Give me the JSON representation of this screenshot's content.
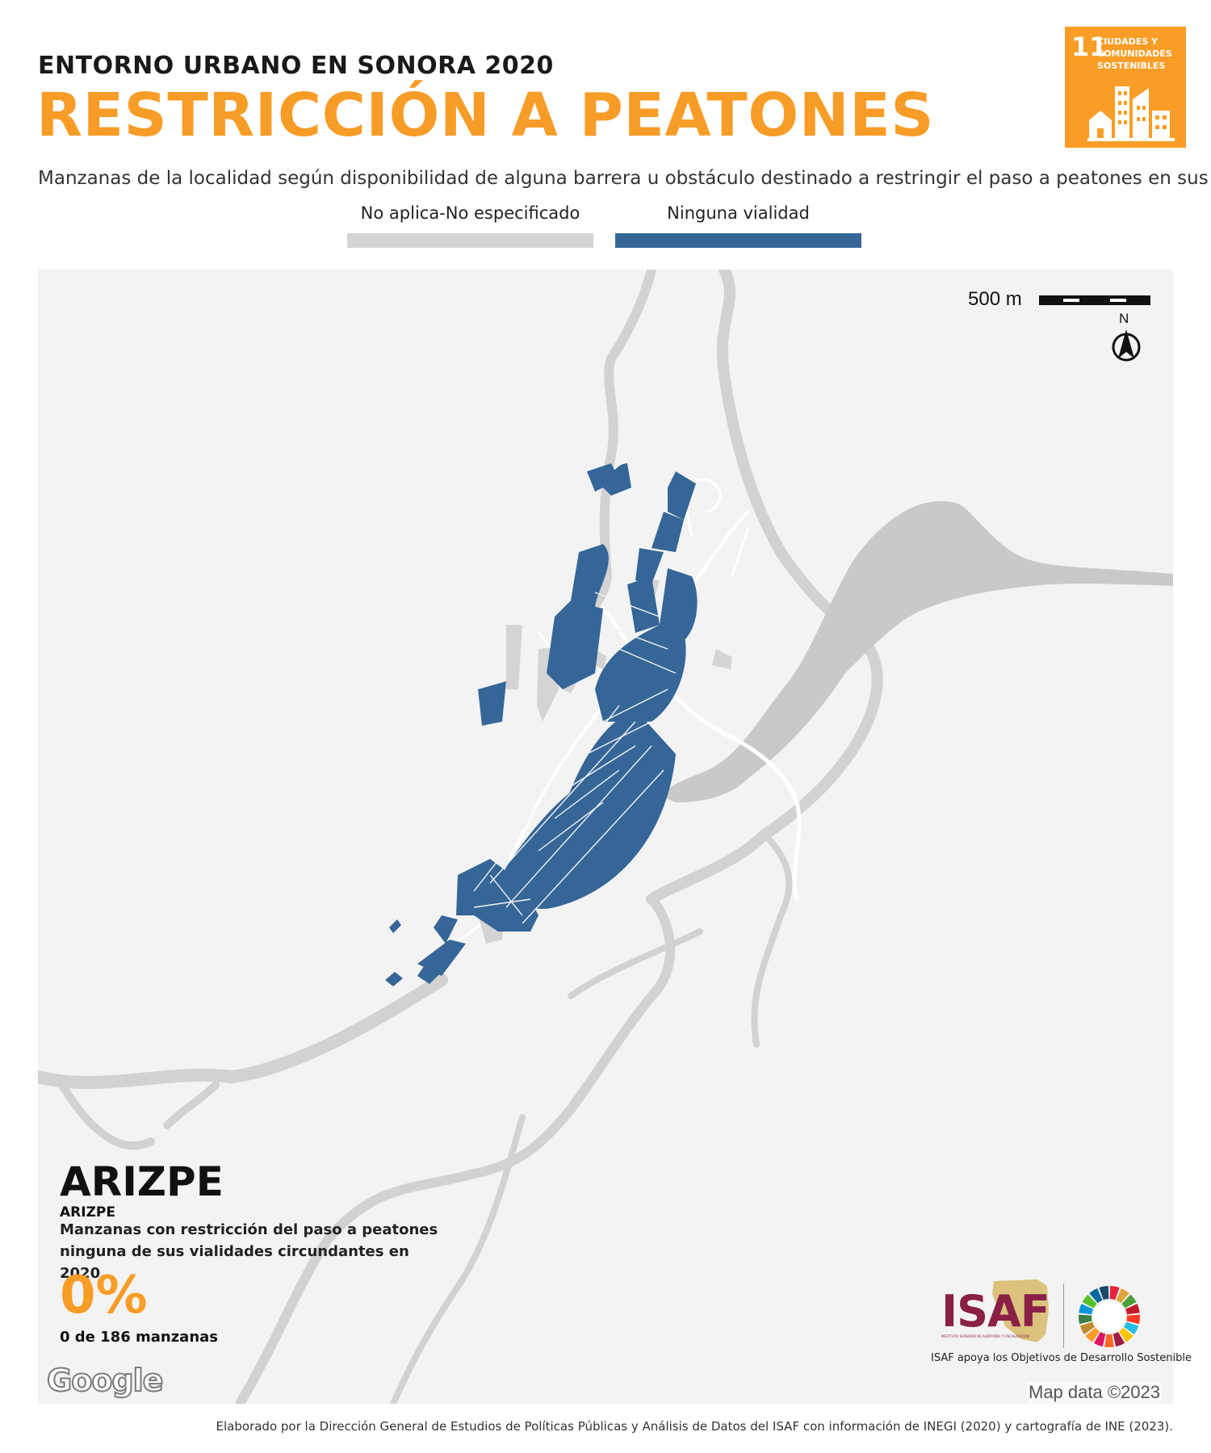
{
  "header": {
    "kicker": "ENTORNO URBANO EN SONORA 2020",
    "title": "RESTRICCIÓN A PEATONES",
    "subtitle": "Manzanas de la localidad según disponibilidad de alguna barrera u obstáculo destinado a restringir el paso a peatones en sus vialidades"
  },
  "sdg": {
    "number": "11",
    "label": "CIUDADES Y COMUNIDADES SOSTENIBLES",
    "color": "#f99d26"
  },
  "legend": {
    "items": [
      {
        "label": "No aplica-No especificado",
        "color": "#d4d4d4"
      },
      {
        "label": "Ninguna vialidad",
        "color": "#356697"
      }
    ]
  },
  "map": {
    "scale_label": "500 m",
    "north_label": "N",
    "attribution": "Map data ©2023",
    "provider_logo": "Google",
    "colors": {
      "background": "#f3f3f3",
      "water": "#c9c9c9",
      "roads": "#ffffff",
      "blocks_ninguna": "#356697",
      "blocks_no_aplica": "#d4d4d4"
    }
  },
  "panel": {
    "locality": "ARIZPE",
    "locality_small": "ARIZPE",
    "caption": "Manzanas con restricción del paso a peatones ninguna de sus vialidades circundantes en 2020.",
    "percent": "0%",
    "count": "0 de 186 manzanas"
  },
  "branding": {
    "isaf_logo": "ISAF",
    "isaf_fullname": "INSTITUTO SUPERIOR DE AUDITORÍA Y FISCALIZACIÓN",
    "tagline": "ISAF apoya los Objetivos de Desarrollo Sostenible",
    "isaf_color": "#8a2046"
  },
  "footer": {
    "text": "Elaborado por la Dirección General de Estudios de Políticas Públicas y Análisis de Datos del ISAF con información de INEGI (2020) y cartografía de INE (2023)."
  }
}
